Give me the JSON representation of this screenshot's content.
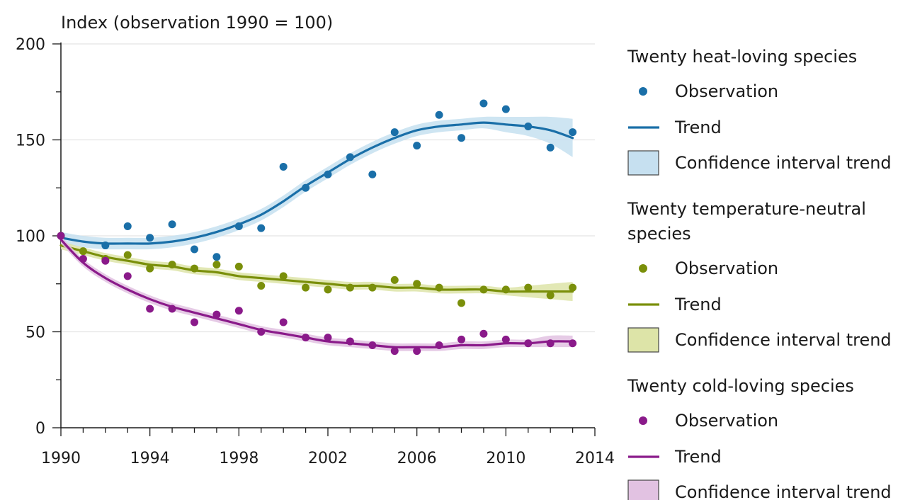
{
  "chart_data": {
    "type": "line",
    "title": "",
    "ylabel": "Index (observation 1990 = 100)",
    "xlabel": "",
    "xlim": [
      1990,
      2014
    ],
    "ylim": [
      0,
      200
    ],
    "x_ticks": [
      1990,
      1994,
      1998,
      2002,
      2006,
      2010,
      2014
    ],
    "y_ticks": [
      0,
      50,
      100,
      150,
      200
    ],
    "grid": "horizontal",
    "legend_position": "right",
    "years": [
      1990,
      1991,
      1992,
      1993,
      1994,
      1995,
      1996,
      1997,
      1998,
      1999,
      2000,
      2001,
      2002,
      2003,
      2004,
      2005,
      2006,
      2007,
      2008,
      2009,
      2010,
      2011,
      2012,
      2013
    ],
    "series": [
      {
        "group": "Twenty heat-loving species",
        "observation_label": "Observation",
        "trend_label": "Trend",
        "ci_label": "Confidence interval trend",
        "color": "#1a6fa8",
        "ci_color": "#c6e0f0",
        "observations": [
          100,
          null,
          95,
          105,
          99,
          106,
          93,
          89,
          105,
          104,
          136,
          125,
          132,
          141,
          132,
          154,
          147,
          163,
          151,
          169,
          166,
          157,
          146,
          154
        ],
        "trend": [
          99,
          97,
          96,
          96,
          96,
          97,
          99,
          102,
          106,
          111,
          118,
          126,
          133,
          140,
          146,
          151,
          155,
          157,
          158,
          159,
          158,
          157,
          155,
          151
        ],
        "ci_halfwidth": [
          3,
          3,
          3,
          3,
          3,
          3,
          3,
          3,
          3,
          3,
          3,
          3,
          3,
          3,
          3,
          3,
          3,
          3,
          3,
          3,
          4,
          5,
          7,
          10
        ]
      },
      {
        "group": "Twenty temperature-neutral species",
        "observation_label": "Observation",
        "trend_label": "Trend",
        "ci_label": "Confidence interval trend",
        "color": "#7a8f0a",
        "ci_color": "#dde4a8",
        "observations": [
          100,
          92,
          88,
          90,
          83,
          85,
          83,
          85,
          84,
          74,
          79,
          73,
          72,
          73,
          73,
          77,
          75,
          73,
          65,
          72,
          72,
          73,
          69,
          73
        ],
        "trend": [
          95,
          92,
          89,
          87,
          85,
          84,
          82,
          81,
          79,
          78,
          77,
          76,
          75,
          74,
          74,
          73,
          73,
          72,
          72,
          72,
          71,
          71,
          71,
          71
        ],
        "ci_halfwidth": [
          2,
          2,
          2,
          2,
          2,
          2,
          2,
          2,
          2,
          2,
          2,
          2,
          2,
          2,
          2,
          2,
          2,
          2,
          2,
          2,
          2,
          3,
          4,
          5
        ]
      },
      {
        "group": "Twenty cold-loving species",
        "observation_label": "Observation",
        "trend_label": "Trend",
        "ci_label": "Confidence interval trend",
        "color": "#8a1a8a",
        "ci_color": "#e2c2e2",
        "observations": [
          100,
          88,
          87,
          79,
          62,
          62,
          55,
          59,
          61,
          50,
          55,
          47,
          47,
          45,
          43,
          40,
          40,
          43,
          46,
          49,
          46,
          44,
          44,
          44
        ],
        "trend": [
          98,
          86,
          78,
          72,
          67,
          63,
          60,
          57,
          54,
          51,
          49,
          47,
          45,
          44,
          43,
          42,
          42,
          42,
          43,
          43,
          44,
          44,
          45,
          45
        ],
        "ci_halfwidth": [
          2,
          2,
          2,
          2,
          2,
          2,
          2,
          2,
          2,
          2,
          2,
          2,
          2,
          2,
          2,
          2,
          2,
          2,
          2,
          2,
          2,
          2,
          3,
          3
        ]
      }
    ]
  }
}
